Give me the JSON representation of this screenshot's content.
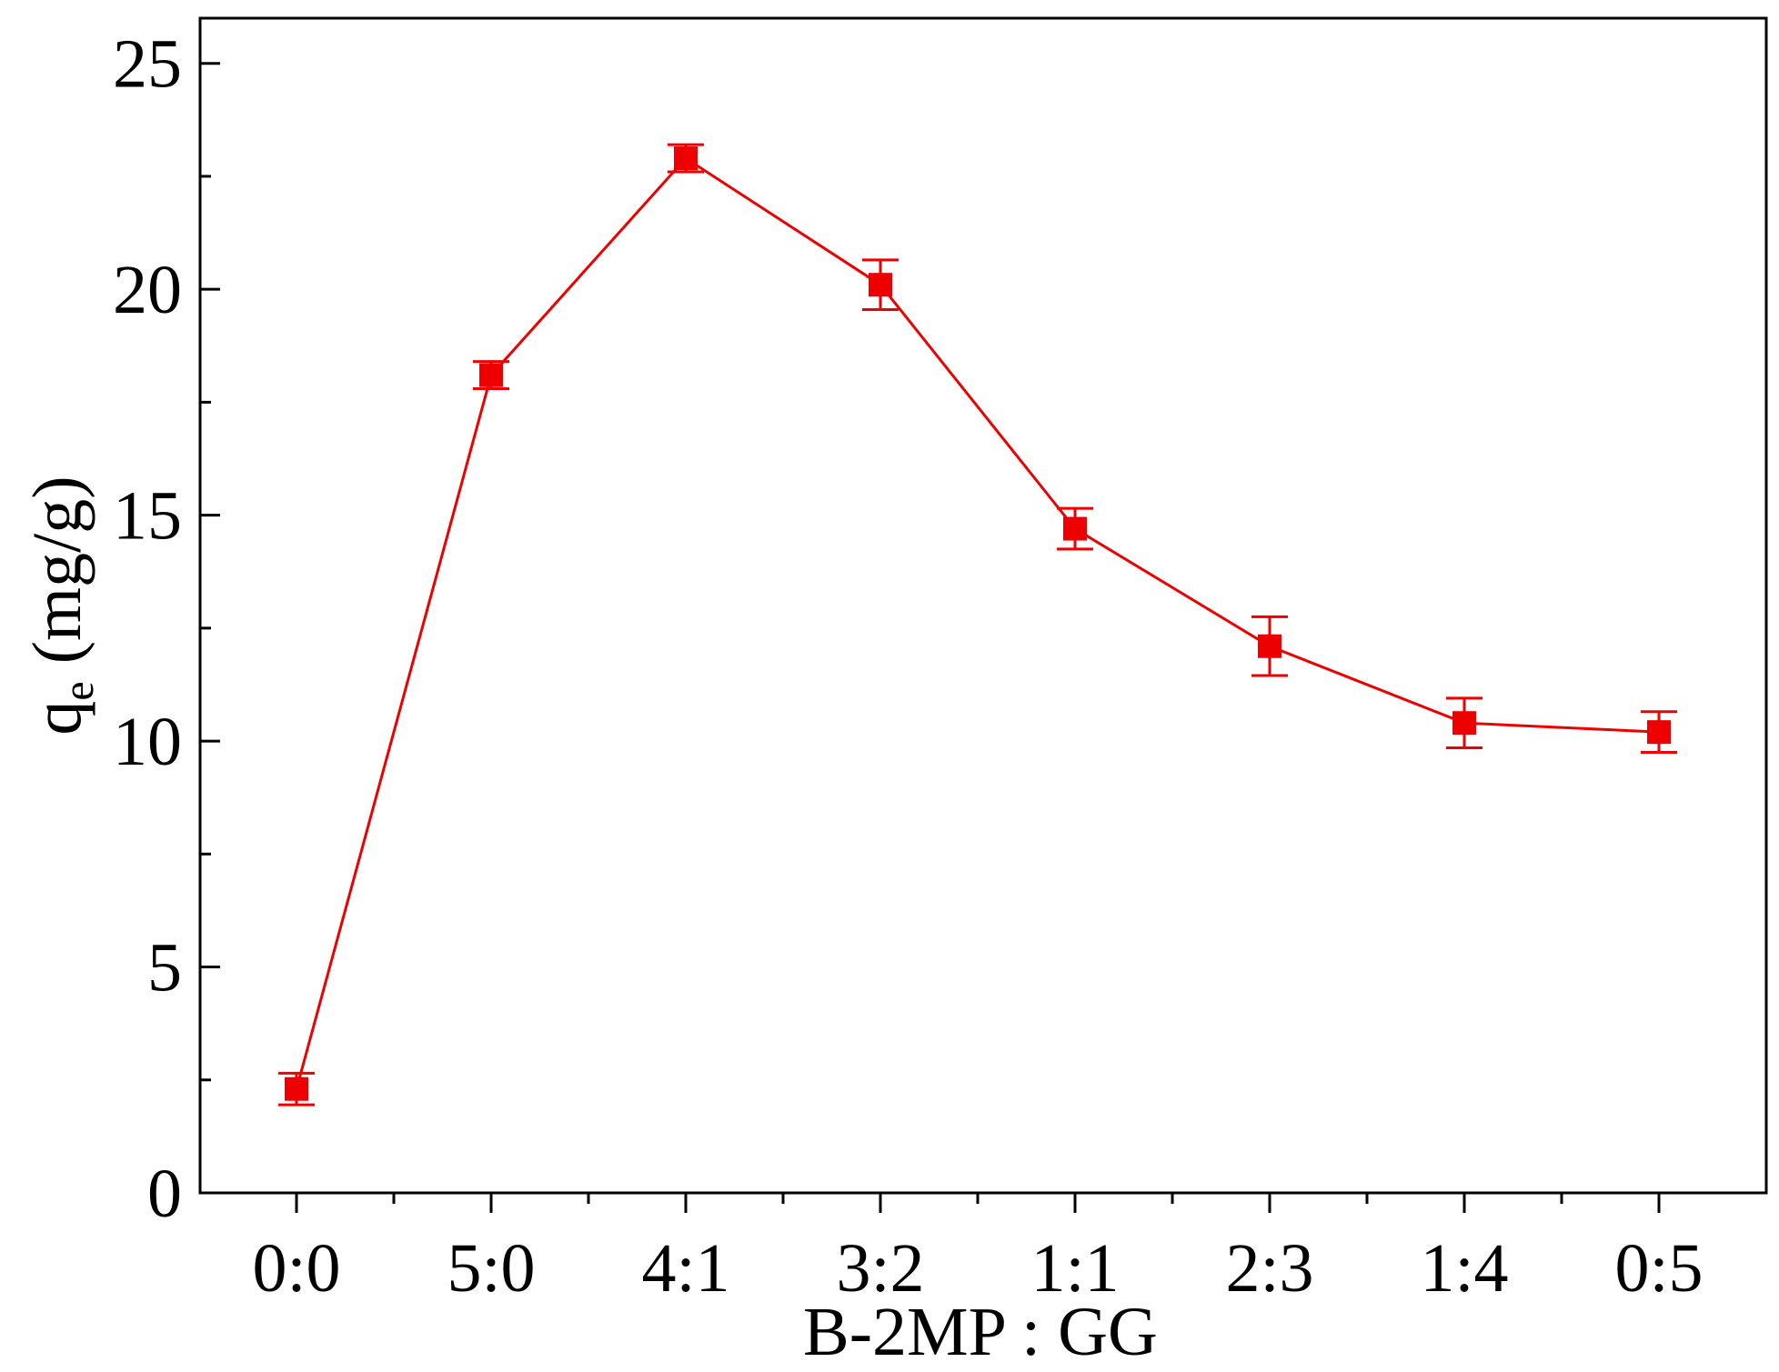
{
  "chart_data": {
    "type": "line",
    "xlabel": "B-2MP : GG",
    "ylabel": {
      "base": "q",
      "subscript": "e",
      "unit": " (mg/g)"
    },
    "categories": [
      "0:0",
      "5:0",
      "4:1",
      "3:2",
      "1:1",
      "2:3",
      "1:4",
      "0:5"
    ],
    "ylim": [
      0,
      26
    ],
    "yticks": [
      0,
      5,
      10,
      15,
      20,
      25
    ],
    "grid": false,
    "series": [
      {
        "values": [
          2.3,
          18.1,
          22.9,
          20.1,
          14.7,
          12.1,
          10.4,
          10.2
        ],
        "errors": [
          0.35,
          0.3,
          0.3,
          0.55,
          0.45,
          0.65,
          0.55,
          0.45
        ],
        "color": "#ee0000",
        "marker": "square"
      }
    ]
  }
}
